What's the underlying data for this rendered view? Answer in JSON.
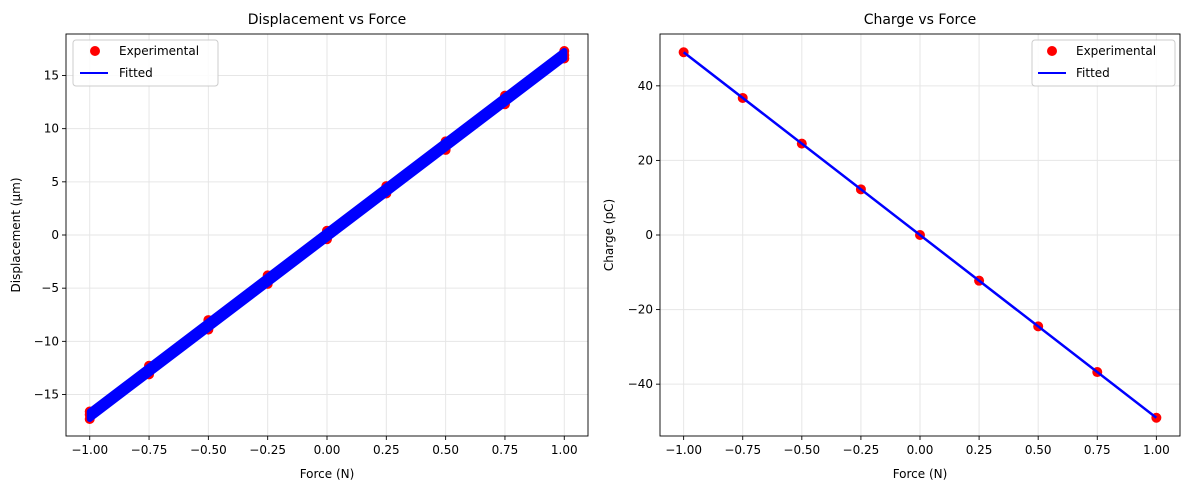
{
  "chart_data": [
    {
      "type": "scatter",
      "title": "Displacement vs Force",
      "xlabel": "Force (N)",
      "ylabel": "Displacement (μm)",
      "xlim": [
        -1.1,
        1.1
      ],
      "ylim": [
        -18.9,
        18.9
      ],
      "xticks": [
        -1.0,
        -0.75,
        -0.5,
        -0.25,
        0.0,
        0.25,
        0.5,
        0.75,
        1.0
      ],
      "xtick_labels": [
        "−1.00",
        "−0.75",
        "−0.50",
        "−0.25",
        "0.00",
        "0.25",
        "0.50",
        "0.75",
        "1.00"
      ],
      "yticks": [
        -15,
        -10,
        -5,
        0,
        5,
        10,
        15
      ],
      "ytick_labels": [
        "−15",
        "−10",
        "−5",
        "0",
        "5",
        "10",
        "15"
      ],
      "grid": true,
      "legend": {
        "location": "upper left",
        "entries": [
          "Experimental",
          "Fitted"
        ]
      },
      "series": [
        {
          "name": "Experimental",
          "kind": "scatter",
          "color": "#ff0000",
          "points": [
            [
              -1.0,
              -17.3
            ],
            [
              -1.0,
              -16.9
            ],
            [
              -1.0,
              -16.6
            ],
            [
              -0.75,
              -13.1
            ],
            [
              -0.75,
              -12.3
            ],
            [
              -0.5,
              -8.9
            ],
            [
              -0.5,
              -8.0
            ],
            [
              -0.25,
              -4.6
            ],
            [
              -0.25,
              -3.8
            ],
            [
              0.0,
              -0.4
            ],
            [
              0.0,
              0.4
            ],
            [
              0.25,
              3.9
            ],
            [
              0.25,
              4.6
            ],
            [
              0.5,
              8.0
            ],
            [
              0.5,
              8.8
            ],
            [
              0.75,
              12.3
            ],
            [
              0.75,
              13.1
            ],
            [
              1.0,
              16.6
            ],
            [
              1.0,
              16.9
            ],
            [
              1.0,
              17.3
            ]
          ]
        },
        {
          "name": "Fitted",
          "kind": "line",
          "color": "#0000ff",
          "band": [
            [
              -1.0,
              -17.3,
              -16.6
            ],
            [
              1.0,
              16.6,
              17.3
            ]
          ]
        }
      ]
    },
    {
      "type": "scatter",
      "title": "Charge vs Force",
      "xlabel": "Force (N)",
      "ylabel": "Charge (pC)",
      "xlim": [
        -1.1,
        1.1
      ],
      "ylim": [
        -53.9,
        53.9
      ],
      "xticks": [
        -1.0,
        -0.75,
        -0.5,
        -0.25,
        0.0,
        0.25,
        0.5,
        0.75,
        1.0
      ],
      "xtick_labels": [
        "−1.00",
        "−0.75",
        "−0.50",
        "−0.25",
        "0.00",
        "0.25",
        "0.50",
        "0.75",
        "1.00"
      ],
      "yticks": [
        -40,
        -20,
        0,
        20,
        40
      ],
      "ytick_labels": [
        "−40",
        "−20",
        "0",
        "20",
        "40"
      ],
      "grid": true,
      "legend": {
        "location": "upper right",
        "entries": [
          "Experimental",
          "Fitted"
        ]
      },
      "series": [
        {
          "name": "Experimental",
          "kind": "scatter",
          "color": "#ff0000",
          "points": [
            [
              -1.0,
              49.0
            ],
            [
              -0.75,
              36.75
            ],
            [
              -0.5,
              24.5
            ],
            [
              -0.25,
              12.25
            ],
            [
              0.0,
              0.0
            ],
            [
              0.25,
              -12.25
            ],
            [
              0.5,
              -24.5
            ],
            [
              0.75,
              -36.75
            ],
            [
              1.0,
              -49.0
            ]
          ]
        },
        {
          "name": "Fitted",
          "kind": "line",
          "color": "#0000ff",
          "points": [
            [
              -1.0,
              49.0
            ],
            [
              1.0,
              -49.0
            ]
          ]
        }
      ]
    }
  ]
}
